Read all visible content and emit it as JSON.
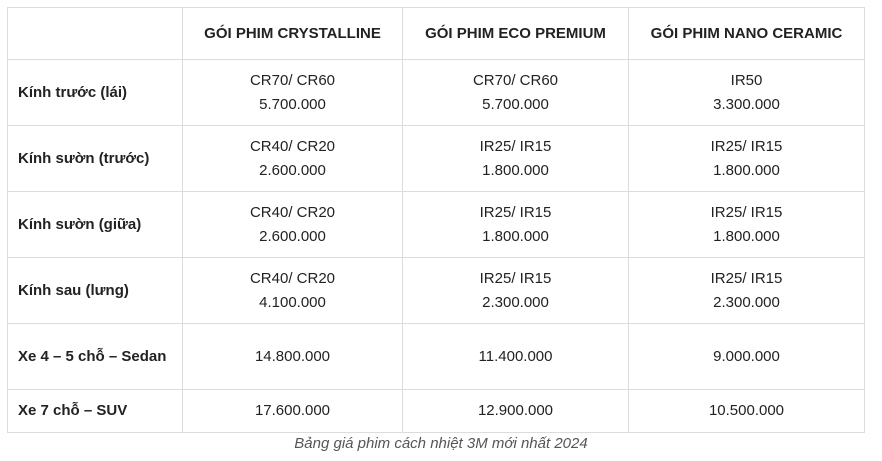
{
  "table": {
    "header": [
      "GÓI PHIM CRYSTALLINE",
      "GÓI PHIM ECO PREMIUM",
      "GÓI PHIM NANO CERAMIC"
    ],
    "rows": [
      {
        "label": "Kính trước (lái)",
        "cells": [
          [
            "CR70/ CR60",
            "5.700.000"
          ],
          [
            "CR70/ CR60",
            "5.700.000"
          ],
          [
            "IR50",
            "3.300.000"
          ]
        ]
      },
      {
        "label": "Kính sườn (trước)",
        "cells": [
          [
            "CR40/ CR20",
            "2.600.000"
          ],
          [
            "IR25/ IR15",
            "1.800.000"
          ],
          [
            "IR25/ IR15",
            "1.800.000"
          ]
        ]
      },
      {
        "label": "Kính sườn (giữa)",
        "cells": [
          [
            "CR40/ CR20",
            "2.600.000"
          ],
          [
            "IR25/ IR15",
            "1.800.000"
          ],
          [
            "IR25/ IR15",
            "1.800.000"
          ]
        ]
      },
      {
        "label": "Kính sau (lưng)",
        "cells": [
          [
            "CR40/ CR20",
            "4.100.000"
          ],
          [
            "IR25/ IR15",
            "2.300.000"
          ],
          [
            "IR25/ IR15",
            "2.300.000"
          ]
        ]
      },
      {
        "label": "Xe 4 – 5 chỗ – Sedan",
        "cells": [
          [
            "14.800.000"
          ],
          [
            "11.400.000"
          ],
          [
            "9.000.000"
          ]
        ]
      },
      {
        "label": "Xe 7 chỗ – SUV",
        "cells": [
          [
            "17.600.000"
          ],
          [
            "12.900.000"
          ],
          [
            "10.500.000"
          ]
        ]
      }
    ],
    "caption": "Bảng giá phim cách nhiệt 3M mới nhất 2024"
  }
}
